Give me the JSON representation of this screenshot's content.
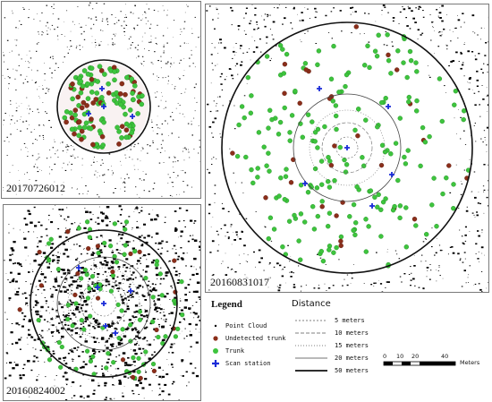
{
  "panels": {
    "top_left": {
      "label": "20170726012"
    },
    "right": {
      "label": "20160831017"
    },
    "bottom_left": {
      "label": "20160824002"
    }
  },
  "legend": {
    "title": "Legend",
    "items": [
      {
        "symbol": "point-cloud-icon",
        "label": "Point Cloud",
        "color": "#000000"
      },
      {
        "symbol": "undetected-trunk-icon",
        "label": "Undetected trunk",
        "color": "#8b2e1a"
      },
      {
        "symbol": "trunk-icon",
        "label": "Trunk",
        "color": "#3ec43e"
      },
      {
        "symbol": "scan-station-icon",
        "label": "Scan station",
        "color": "#1a2bd8"
      }
    ]
  },
  "distance_legend": {
    "title": "Distance",
    "items": [
      {
        "label": "5 meters",
        "style": "dashed-fine"
      },
      {
        "label": "10 meters",
        "style": "dashed"
      },
      {
        "label": "15 meters",
        "style": "dotted"
      },
      {
        "label": "20 meters",
        "style": "solid-thin"
      },
      {
        "label": "50 meters",
        "style": "solid-thick"
      }
    ]
  },
  "scale_bar": {
    "ticks": [
      "0",
      "10",
      "20",
      "40"
    ],
    "unit": "Meters"
  }
}
